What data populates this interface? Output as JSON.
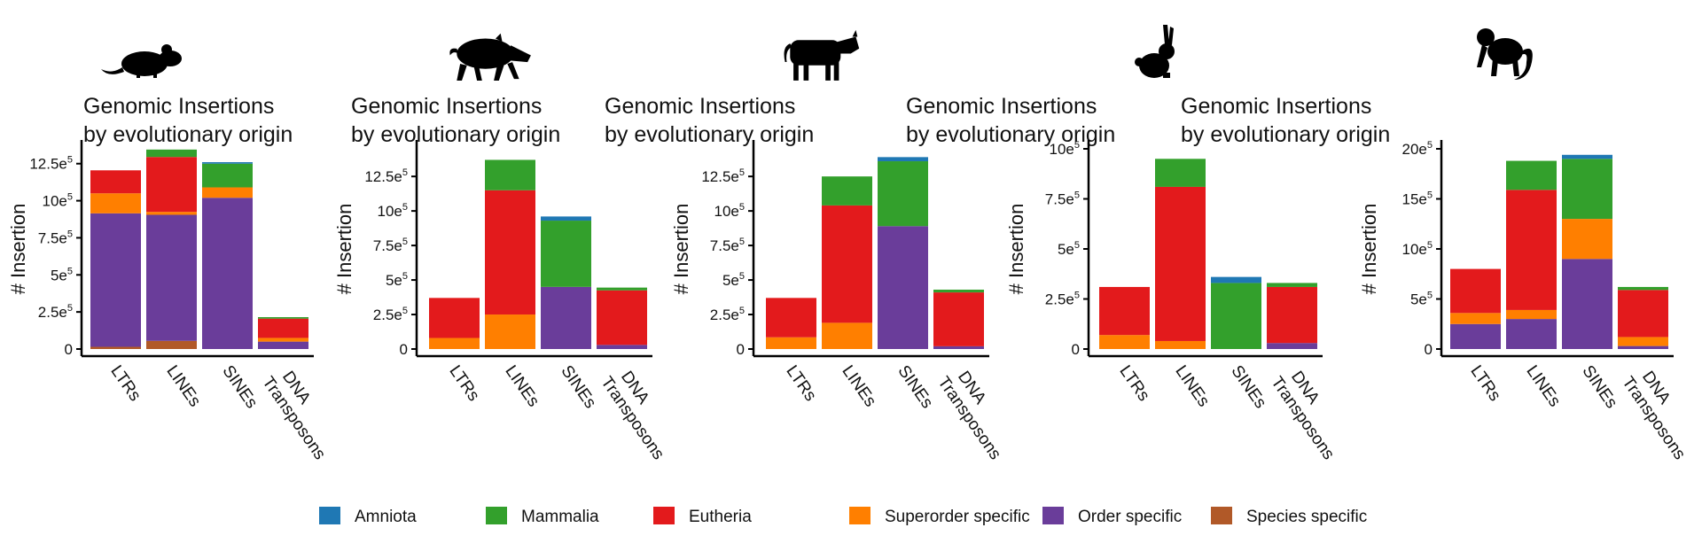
{
  "colors": {
    "Amniota": "#1f78b4",
    "Mammalia": "#33a02c",
    "Eutheria": "#e31a1c",
    "Superorder specific": "#ff7f00",
    "Order specific": "#6a3d9a",
    "Species specific": "#b15928"
  },
  "legend": [
    {
      "label": "Amniota",
      "color": "#1f78b4"
    },
    {
      "label": "Mammalia",
      "color": "#33a02c"
    },
    {
      "label": "Eutheria",
      "color": "#e31a1c"
    },
    {
      "label": "Superorder specific",
      "color": "#ff7f00"
    },
    {
      "label": "Order specific",
      "color": "#6a3d9a"
    },
    {
      "label": "Species specific",
      "color": "#b15928"
    }
  ],
  "chart_data": [
    {
      "type": "bar",
      "stacked": true,
      "species_icon": "mouse-icon",
      "title_lines": [
        "Genomic Insertions",
        "by evolutionary origin"
      ],
      "ylabel": "# Insertion",
      "categories": [
        "LTRs",
        "LINEs",
        "SINEs",
        "DNA\nTransposons"
      ],
      "ylim": [
        0,
        1350000
      ],
      "yticks": [
        {
          "value": 0,
          "label": "0",
          "exp": ""
        },
        {
          "value": 250000,
          "label": "2.5e",
          "exp": "5"
        },
        {
          "value": 500000,
          "label": "5e",
          "exp": "5"
        },
        {
          "value": 750000,
          "label": "7.5e",
          "exp": "5"
        },
        {
          "value": 1000000,
          "label": "10e",
          "exp": "5"
        },
        {
          "value": 1250000,
          "label": "12.5e",
          "exp": "5"
        }
      ],
      "series": [
        {
          "name": "Species specific",
          "values": [
            15000,
            55000,
            0,
            0
          ]
        },
        {
          "name": "Order specific",
          "values": [
            900000,
            850000,
            1020000,
            50000
          ]
        },
        {
          "name": "Superorder specific",
          "values": [
            135000,
            20000,
            70000,
            25000
          ]
        },
        {
          "name": "Eutheria",
          "values": [
            155000,
            370000,
            0,
            130000
          ]
        },
        {
          "name": "Mammalia",
          "values": [
            0,
            50000,
            160000,
            10000
          ]
        },
        {
          "name": "Amniota",
          "values": [
            0,
            0,
            10000,
            0
          ]
        }
      ]
    },
    {
      "type": "bar",
      "stacked": true,
      "species_icon": "boar-icon",
      "title_lines": [
        "Genomic Insertions",
        "by evolutionary origin"
      ],
      "ylabel": "# Insertion",
      "categories": [
        "LTRs",
        "LINEs",
        "SINEs",
        "DNA\nTransposons"
      ],
      "ylim": [
        0,
        1450000
      ],
      "yticks": [
        {
          "value": 0,
          "label": "0",
          "exp": ""
        },
        {
          "value": 250000,
          "label": "2.5e",
          "exp": "5"
        },
        {
          "value": 500000,
          "label": "5e",
          "exp": "5"
        },
        {
          "value": 750000,
          "label": "7.5e",
          "exp": "5"
        },
        {
          "value": 1000000,
          "label": "10e",
          "exp": "5"
        },
        {
          "value": 1250000,
          "label": "12.5e",
          "exp": "5"
        }
      ],
      "series": [
        {
          "name": "Species specific",
          "values": [
            0,
            0,
            0,
            0
          ]
        },
        {
          "name": "Order specific",
          "values": [
            0,
            0,
            450000,
            30000
          ]
        },
        {
          "name": "Superorder specific",
          "values": [
            80000,
            250000,
            0,
            0
          ]
        },
        {
          "name": "Eutheria",
          "values": [
            290000,
            900000,
            0,
            395000
          ]
        },
        {
          "name": "Mammalia",
          "values": [
            0,
            220000,
            480000,
            20000
          ]
        },
        {
          "name": "Amniota",
          "values": [
            0,
            0,
            30000,
            0
          ]
        }
      ]
    },
    {
      "type": "bar",
      "stacked": true,
      "species_icon": "cow-icon",
      "title_lines": [
        "Genomic Insertions",
        "by evolutionary origin"
      ],
      "ylabel": "# Insertion",
      "categories": [
        "LTRs",
        "LINEs",
        "SINEs",
        "DNA\nTransposons"
      ],
      "ylim": [
        0,
        1450000
      ],
      "yticks": [
        {
          "value": 0,
          "label": "0",
          "exp": ""
        },
        {
          "value": 250000,
          "label": "2.5e",
          "exp": "5"
        },
        {
          "value": 500000,
          "label": "5e",
          "exp": "5"
        },
        {
          "value": 750000,
          "label": "7.5e",
          "exp": "5"
        },
        {
          "value": 1000000,
          "label": "10e",
          "exp": "5"
        },
        {
          "value": 1250000,
          "label": "12.5e",
          "exp": "5"
        }
      ],
      "series": [
        {
          "name": "Species specific",
          "values": [
            0,
            0,
            0,
            0
          ]
        },
        {
          "name": "Order specific",
          "values": [
            0,
            0,
            890000,
            20000
          ]
        },
        {
          "name": "Superorder specific",
          "values": [
            85000,
            190000,
            0,
            0
          ]
        },
        {
          "name": "Eutheria",
          "values": [
            285000,
            850000,
            0,
            390000
          ]
        },
        {
          "name": "Mammalia",
          "values": [
            0,
            210000,
            470000,
            20000
          ]
        },
        {
          "name": "Amniota",
          "values": [
            0,
            0,
            30000,
            0
          ]
        }
      ]
    },
    {
      "type": "bar",
      "stacked": true,
      "species_icon": "rabbit-icon",
      "title_lines": [
        "Genomic Insertions",
        "by evolutionary origin"
      ],
      "ylabel": "# Insertion",
      "categories": [
        "LTRs",
        "LINEs",
        "SINEs",
        "DNA\nTransposons"
      ],
      "ylim": [
        0,
        1000000
      ],
      "yticks": [
        {
          "value": 0,
          "label": "0",
          "exp": ""
        },
        {
          "value": 250000,
          "label": "2.5e",
          "exp": "5"
        },
        {
          "value": 500000,
          "label": "5e",
          "exp": "5"
        },
        {
          "value": 750000,
          "label": "7.5e",
          "exp": "5"
        },
        {
          "value": 1000000,
          "label": "10e",
          "exp": "5"
        }
      ],
      "series": [
        {
          "name": "Species specific",
          "values": [
            0,
            0,
            0,
            0
          ]
        },
        {
          "name": "Order specific",
          "values": [
            0,
            0,
            0,
            30000
          ]
        },
        {
          "name": "Superorder specific",
          "values": [
            70000,
            40000,
            0,
            0
          ]
        },
        {
          "name": "Eutheria",
          "values": [
            240000,
            770000,
            0,
            280000
          ]
        },
        {
          "name": "Mammalia",
          "values": [
            0,
            140000,
            330000,
            20000
          ]
        },
        {
          "name": "Amniota",
          "values": [
            0,
            0,
            30000,
            0
          ]
        }
      ]
    },
    {
      "type": "bar",
      "stacked": true,
      "species_icon": "monkey-icon",
      "title_lines": [
        "Genomic Insertions",
        "by evolutionary origin"
      ],
      "ylabel": "# Insertion",
      "categories": [
        "LTRs",
        "LINEs",
        "SINEs",
        "DNA\nTransposons"
      ],
      "ylim": [
        0,
        2000000
      ],
      "yticks": [
        {
          "value": 0,
          "label": "0",
          "exp": ""
        },
        {
          "value": 500000,
          "label": "5e",
          "exp": "5"
        },
        {
          "value": 1000000,
          "label": "10e",
          "exp": "5"
        },
        {
          "value": 1500000,
          "label": "15e",
          "exp": "5"
        },
        {
          "value": 2000000,
          "label": "20e",
          "exp": "5"
        }
      ],
      "series": [
        {
          "name": "Species specific",
          "values": [
            0,
            0,
            0,
            0
          ]
        },
        {
          "name": "Order specific",
          "values": [
            250000,
            300000,
            900000,
            30000
          ]
        },
        {
          "name": "Superorder specific",
          "values": [
            110000,
            90000,
            400000,
            90000
          ]
        },
        {
          "name": "Eutheria",
          "values": [
            440000,
            1200000,
            0,
            470000
          ]
        },
        {
          "name": "Mammalia",
          "values": [
            0,
            290000,
            600000,
            30000
          ]
        },
        {
          "name": "Amniota",
          "values": [
            0,
            0,
            40000,
            0
          ]
        }
      ]
    }
  ]
}
